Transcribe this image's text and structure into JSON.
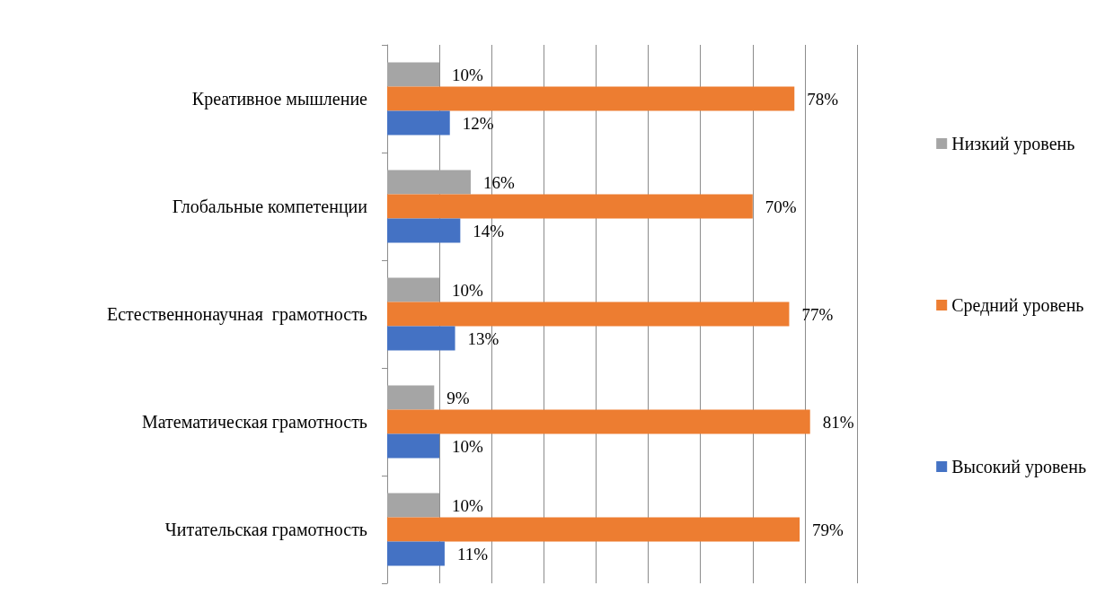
{
  "chart_data": {
    "type": "bar",
    "orientation": "horizontal",
    "categories": [
      "Креативное мышление",
      "Глобальные компетенции",
      "Естественнонаучная  грамотность",
      "Математическая грамотность",
      "Читательская грамотность"
    ],
    "series": [
      {
        "name": "Низкий уровень",
        "color": "#a5a5a5",
        "values": [
          10,
          16,
          10,
          9,
          10
        ],
        "value_labels": [
          "10%",
          "16%",
          "10%",
          "9%",
          "10%"
        ]
      },
      {
        "name": "Средний уровень",
        "color": "#ed7d31",
        "values": [
          78,
          70,
          77,
          81,
          79
        ],
        "value_labels": [
          "78%",
          "70%",
          "77%",
          "81%",
          "79%"
        ]
      },
      {
        "name": "Высокий уровень",
        "color": "#4472c4",
        "values": [
          12,
          14,
          13,
          10,
          11
        ],
        "value_labels": [
          "12%",
          "14%",
          "13%",
          "10%",
          "11%"
        ]
      }
    ],
    "xlim": [
      0,
      90
    ],
    "xticks": [
      {
        "value": 0,
        "label": null
      },
      {
        "value": 10,
        "label": null
      },
      {
        "value": 20,
        "label": null
      },
      {
        "value": 30,
        "label": null
      },
      {
        "value": 40,
        "label": null
      },
      {
        "value": 50,
        "label": null
      },
      {
        "value": 60,
        "label": null
      },
      {
        "value": 70,
        "label": null
      },
      {
        "value": 80,
        "label": null
      },
      {
        "value": 90,
        "label": null
      }
    ],
    "tick_labels": "y",
    "grid": "x",
    "legend": "right"
  }
}
